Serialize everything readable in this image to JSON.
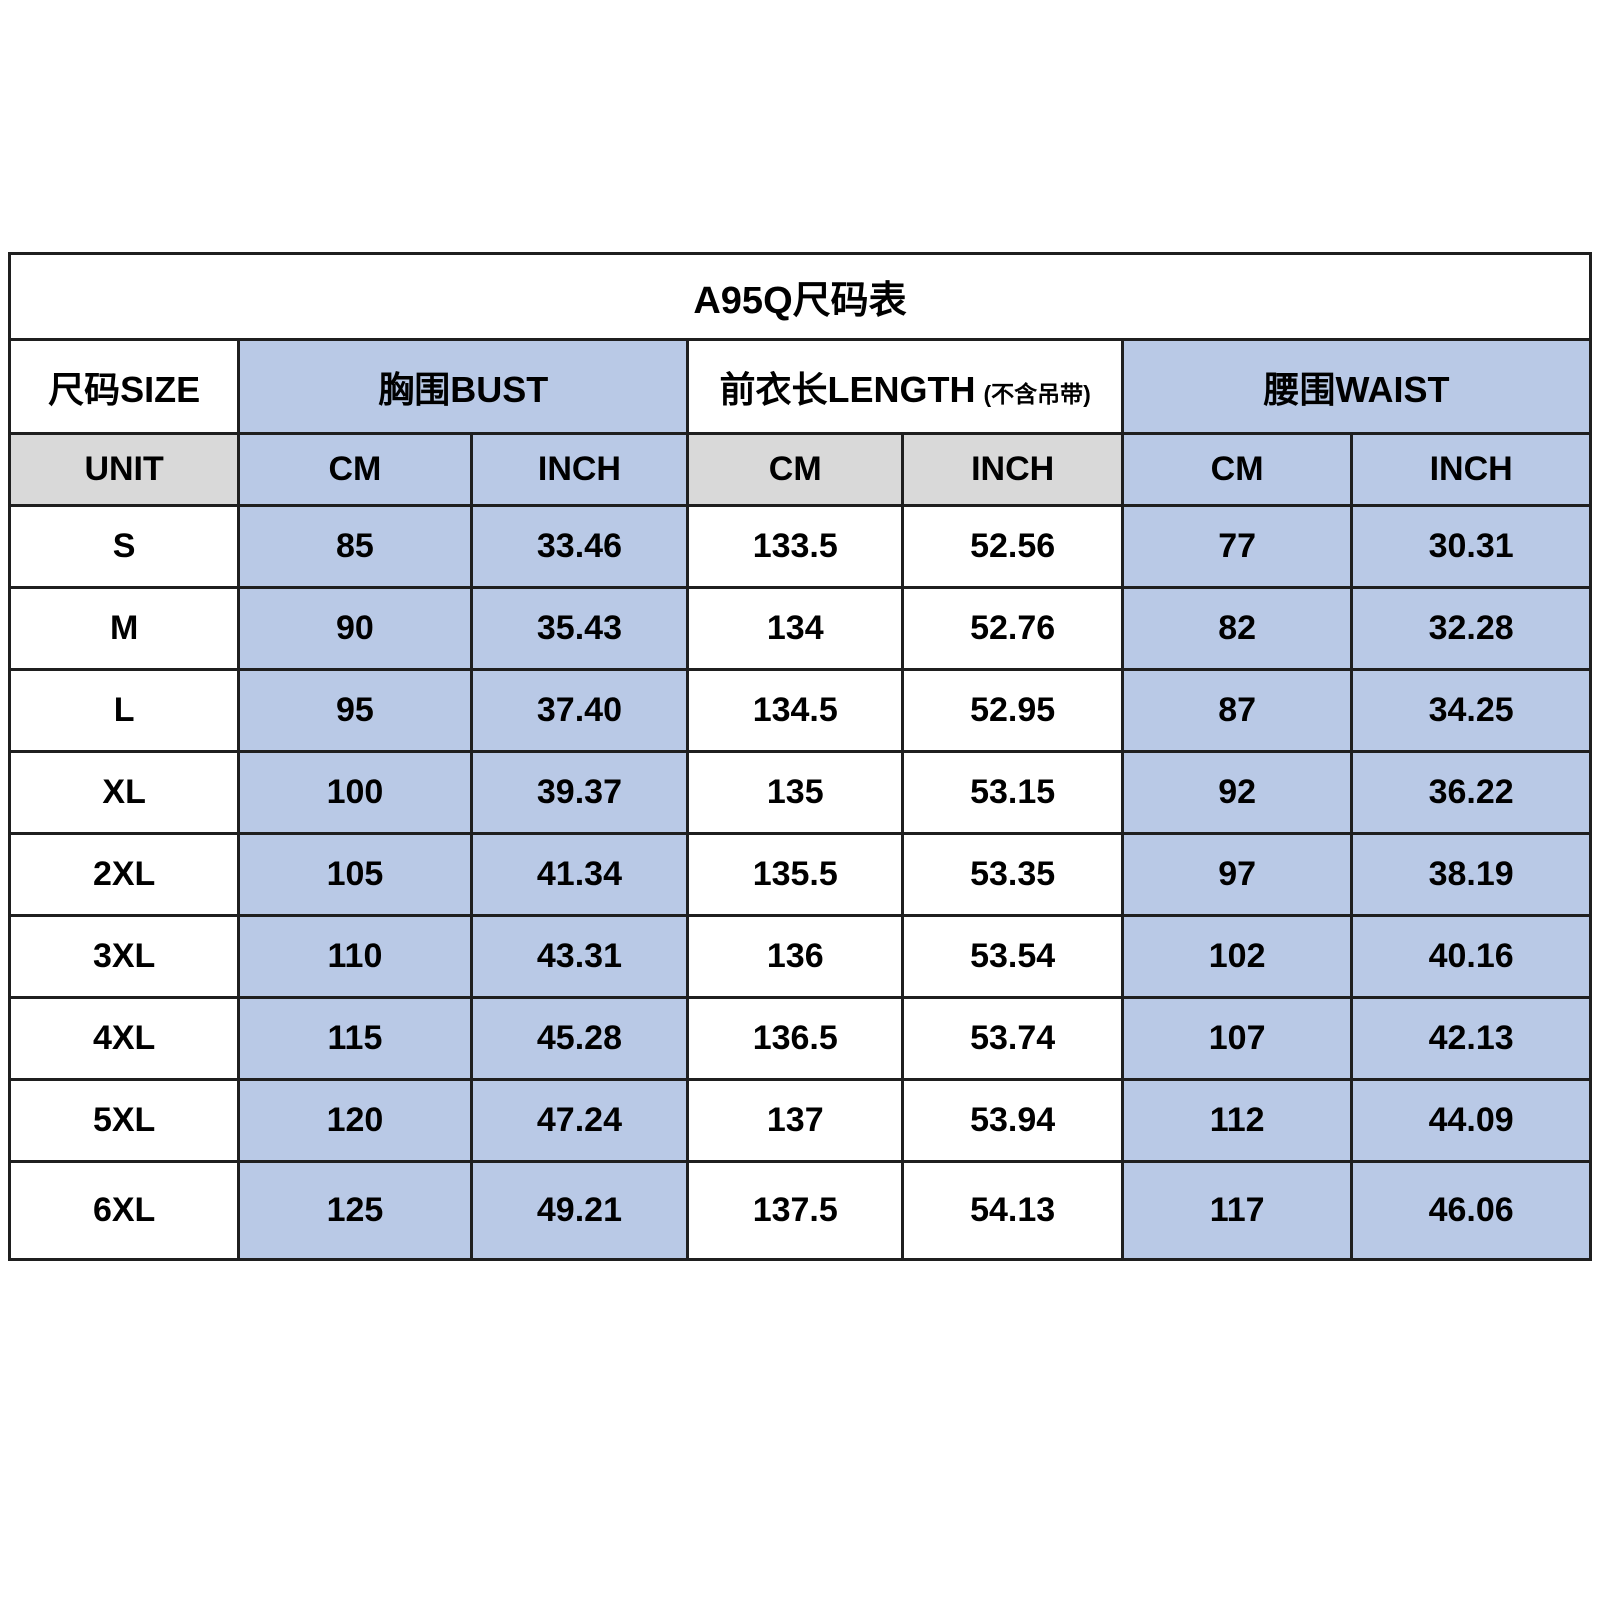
{
  "chart_data": {
    "type": "table",
    "title": "A95Q尺码表",
    "column_groups": [
      {
        "label": "尺码SIZE"
      },
      {
        "label": "胸围BUST"
      },
      {
        "label": "前衣长LENGTH",
        "note": "(不含吊带)"
      },
      {
        "label": "腰围WAIST"
      }
    ],
    "unit_row": [
      "UNIT",
      "CM",
      "INCH",
      "CM",
      "INCH",
      "CM",
      "INCH"
    ],
    "rows": [
      [
        "S",
        "85",
        "33.46",
        "133.5",
        "52.56",
        "77",
        "30.31"
      ],
      [
        "M",
        "90",
        "35.43",
        "134",
        "52.76",
        "82",
        "32.28"
      ],
      [
        "L",
        "95",
        "37.40",
        "134.5",
        "52.95",
        "87",
        "34.25"
      ],
      [
        "XL",
        "100",
        "39.37",
        "135",
        "53.15",
        "92",
        "36.22"
      ],
      [
        "2XL",
        "105",
        "41.34",
        "135.5",
        "53.35",
        "97",
        "38.19"
      ],
      [
        "3XL",
        "110",
        "43.31",
        "136",
        "53.54",
        "102",
        "40.16"
      ],
      [
        "4XL",
        "115",
        "45.28",
        "136.5",
        "53.74",
        "107",
        "42.13"
      ],
      [
        "5XL",
        "120",
        "47.24",
        "137",
        "53.94",
        "112",
        "44.09"
      ],
      [
        "6XL",
        "125",
        "49.21",
        "137.5",
        "54.13",
        "117",
        "46.06"
      ]
    ]
  },
  "colors": {
    "cell_blue": "#b9c9e6",
    "cell_grey": "#d9d9d9",
    "border": "#1f1f1f",
    "text": "#000000",
    "background": "#ffffff"
  }
}
